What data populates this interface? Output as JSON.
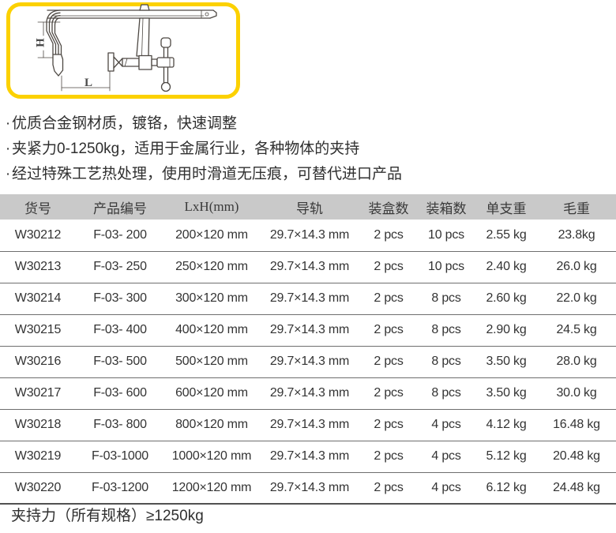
{
  "product_image": {
    "description": "f-clamp-technical-drawing",
    "dimension_labels": {
      "h": "H",
      "l": "L"
    }
  },
  "bullet_char": "·",
  "features": [
    "优质合金钢材质，镀铬，快速调整",
    "夹紧力0-1250kg，适用于金属行业，各种物体的夹持",
    "经过特殊工艺热处理，使用时滑道无压痕，可替代进口产品"
  ],
  "table": {
    "headers": [
      "货号",
      "产品编号",
      "LxH(mm)",
      "导轨",
      "装盒数",
      "装箱数",
      "单支重",
      "毛重"
    ],
    "rows": [
      [
        "W30212",
        "F-03- 200",
        "200×120 mm",
        "29.7×14.3 mm",
        "2 pcs",
        "10 pcs",
        "2.55 kg",
        "23.8kg"
      ],
      [
        "W30213",
        "F-03- 250",
        "250×120 mm",
        "29.7×14.3 mm",
        "2 pcs",
        "10 pcs",
        "2.40 kg",
        "26.0 kg"
      ],
      [
        "W30214",
        "F-03- 300",
        "300×120 mm",
        "29.7×14.3 mm",
        "2 pcs",
        "8 pcs",
        "2.60 kg",
        "22.0 kg"
      ],
      [
        "W30215",
        "F-03- 400",
        "400×120 mm",
        "29.7×14.3 mm",
        "2 pcs",
        "8 pcs",
        "2.90 kg",
        "24.5 kg"
      ],
      [
        "W30216",
        "F-03- 500",
        "500×120 mm",
        "29.7×14.3 mm",
        "2 pcs",
        "8 pcs",
        "3.50 kg",
        "28.0 kg"
      ],
      [
        "W30217",
        "F-03- 600",
        "600×120 mm",
        "29.7×14.3 mm",
        "2 pcs",
        "8 pcs",
        "3.50 kg",
        "30.0 kg"
      ],
      [
        "W30218",
        "F-03- 800",
        "800×120 mm",
        "29.7×14.3 mm",
        "2 pcs",
        "4 pcs",
        "4.12 kg",
        "16.48 kg"
      ],
      [
        "W30219",
        "F-03-1000",
        "1000×120 mm",
        "29.7×14.3 mm",
        "2 pcs",
        "4 pcs",
        "5.12 kg",
        "20.48 kg"
      ],
      [
        "W30220",
        "F-03-1200",
        "1200×120 mm",
        "29.7×14.3 mm",
        "2 pcs",
        "4 pcs",
        "6.12 kg",
        "24.48 kg"
      ]
    ]
  },
  "footer_note": "夹持力（所有规格）≥1250kg",
  "colors": {
    "accent_yellow": "#FCD100",
    "header_bg": "#C9C9C9",
    "row_divider": "#6E6E6E",
    "text": "#333333"
  }
}
